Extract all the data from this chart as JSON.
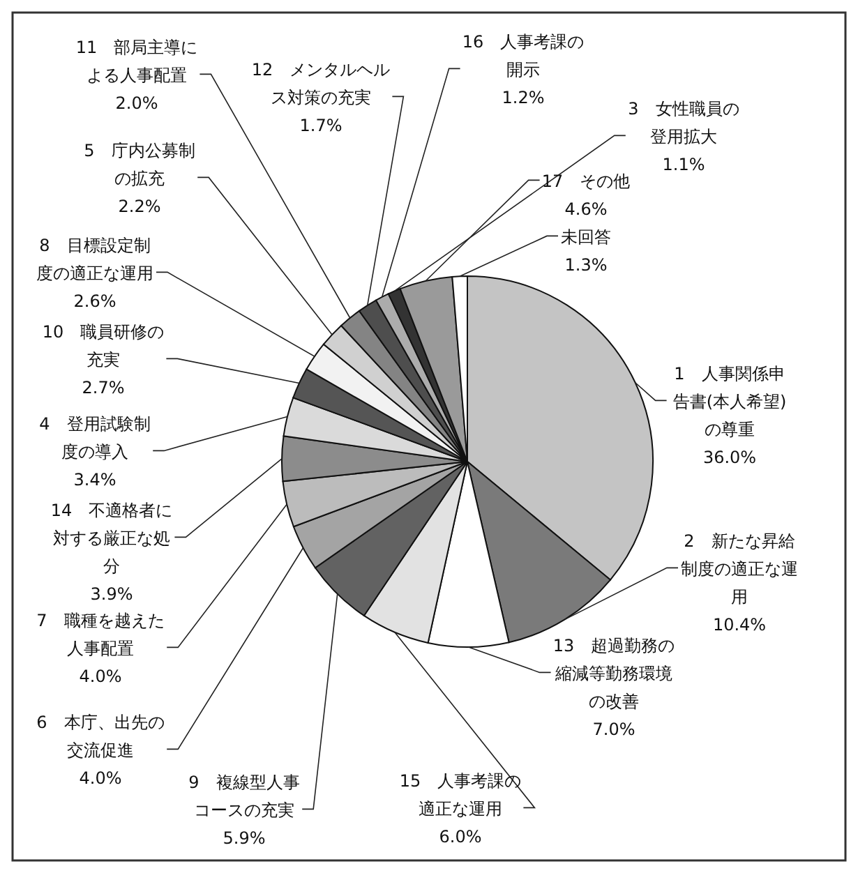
{
  "chart_data": {
    "type": "pie",
    "categories": [
      "1　人事関係申告書(本人希望)の尊重",
      "2　新たな昇給制度の適正な運用",
      "13　超過勤務の縮減等勤務環境の改善",
      "15　人事考課の適正な運用",
      "9　複線型人事コースの充実",
      "6　本庁、出先の交流促進",
      "7　職種を越えた人事配置",
      "14　不適格者に対する厳正な処分",
      "4　登用試験制度の導入",
      "10　職員研修の充実",
      "8　目標設定制度の適正な運用",
      "5　庁内公募制の拡充",
      "11　部局主導による人事配置",
      "12　メンタルヘルス対策の充実",
      "16　人事考課の開示",
      "3　女性職員の登用拡大",
      "17　その他",
      "未回答"
    ],
    "values": [
      36.0,
      10.4,
      7.0,
      6.0,
      5.9,
      4.0,
      4.0,
      3.9,
      3.4,
      2.7,
      2.6,
      2.2,
      2.0,
      1.7,
      1.2,
      1.1,
      4.6,
      1.3
    ],
    "value_labels": [
      "36.0%",
      "10.4%",
      "7.0%",
      "6.0%",
      "5.9%",
      "4.0%",
      "4.0%",
      "3.9%",
      "3.4%",
      "2.7%",
      "2.6%",
      "2.2%",
      "2.0%",
      "1.7%",
      "1.2%",
      "1.1%",
      "4.6%",
      "1.3%"
    ],
    "colors": [
      "#c4c4c4",
      "#7a7a7a",
      "#ffffff",
      "#e2e2e2",
      "#626262",
      "#a4a4a4",
      "#bcbcbc",
      "#8c8c8c",
      "#dadada",
      "#555555",
      "#f2f2f2",
      "#d0d0d0",
      "#848484",
      "#4e4e4e",
      "#acacac",
      "#333333",
      "#9a9a9a",
      "#ffffff"
    ]
  }
}
